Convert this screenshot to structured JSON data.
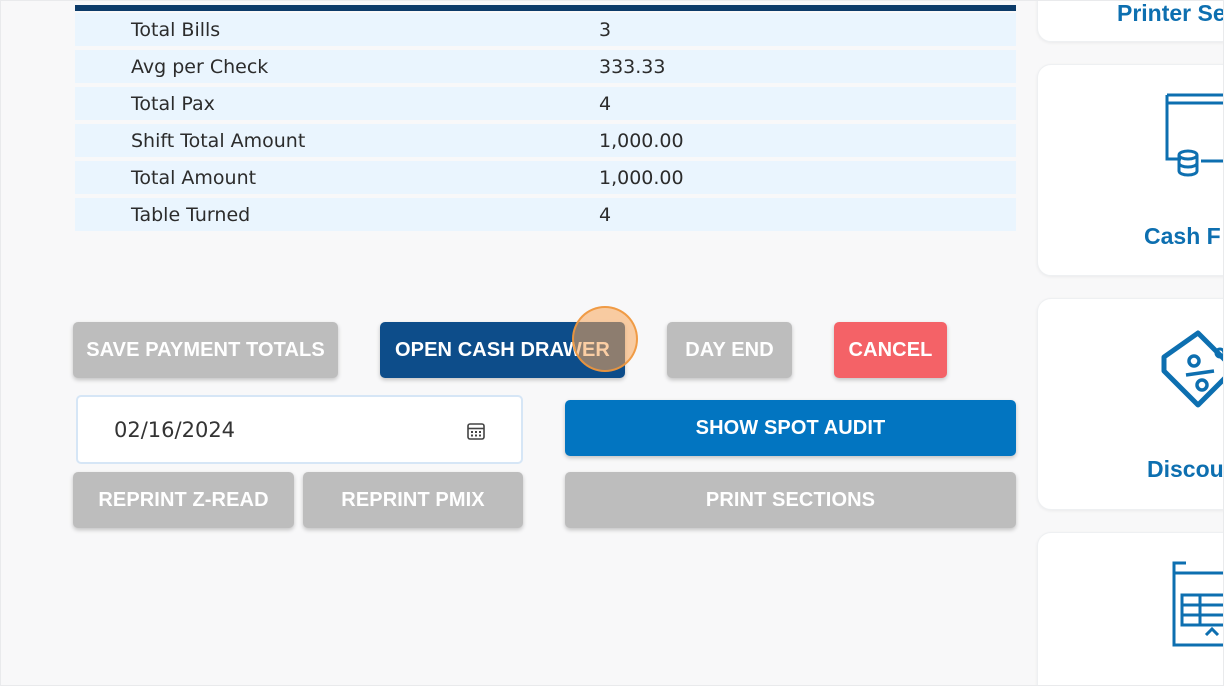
{
  "summary": {
    "rows": [
      {
        "label": "Total Bills",
        "value": "3"
      },
      {
        "label": "Avg per Check",
        "value": "333.33"
      },
      {
        "label": "Total Pax",
        "value": "4"
      },
      {
        "label": "Shift Total Amount",
        "value": "1,000.00"
      },
      {
        "label": "Total Amount",
        "value": "1,000.00"
      },
      {
        "label": "Table Turned",
        "value": "4"
      }
    ]
  },
  "actions": {
    "save_payment_totals": "SAVE PAYMENT TOTALS",
    "open_cash_drawer": "OPEN CASH DRAWER",
    "day_end": "DAY END",
    "cancel": "CANCEL",
    "show_spot_audit": "SHOW SPOT AUDIT",
    "reprint_z_read": "REPRINT Z-READ",
    "reprint_pmix": "REPRINT PMIX",
    "print_sections": "PRINT SECTIONS"
  },
  "date_picker": {
    "value": "02/16/2024",
    "icon": "calendar-icon"
  },
  "side_menu": {
    "items": [
      {
        "label": "Printer Se",
        "icon": "printer-icon"
      },
      {
        "label": "Cash F",
        "icon": "cash-drawer-icon"
      },
      {
        "label": "Discou",
        "icon": "discount-tag-icon"
      },
      {
        "label": "",
        "icon": "report-icon"
      }
    ]
  },
  "colors": {
    "navy": "#0d4d8a",
    "blue": "#0275c1",
    "red": "#f46267",
    "gray": "#bdbdbd",
    "row_bg": "#eaf5fe",
    "accent_text": "#0d6fb0"
  }
}
